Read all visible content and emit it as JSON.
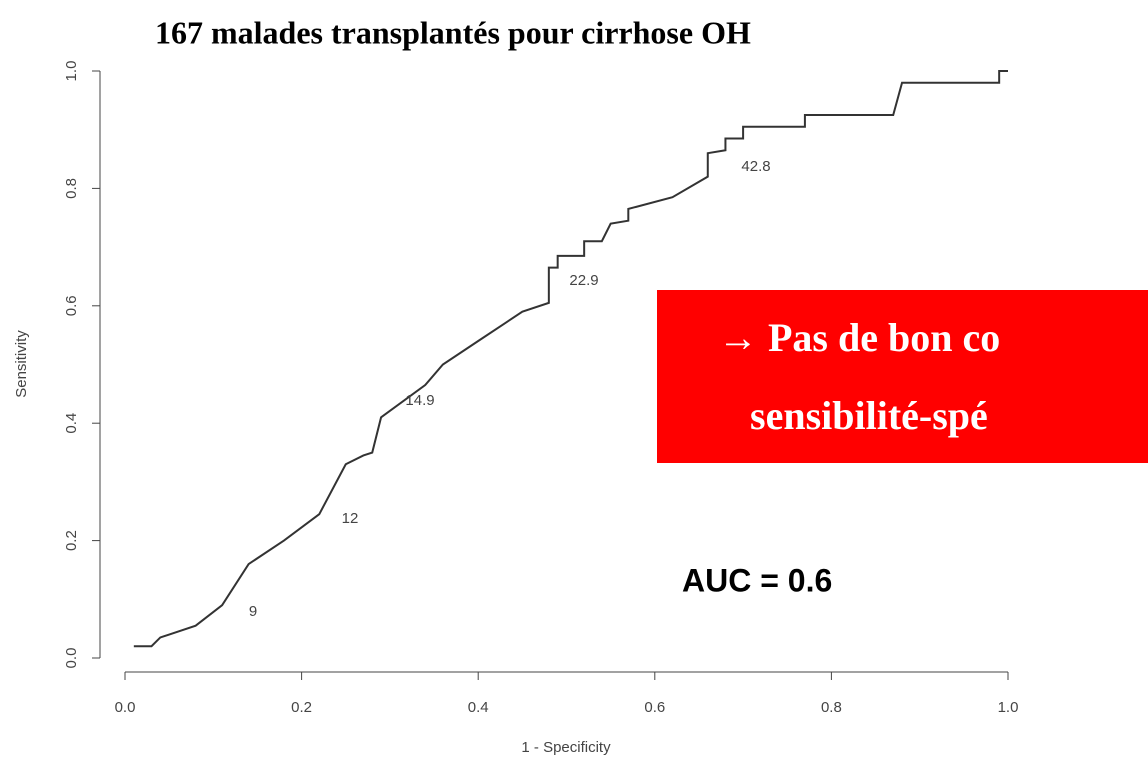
{
  "chart_data": {
    "type": "line",
    "title": "167 malades transplantés pour cirrhose OH",
    "x_label": "1 - Specificity",
    "y_label": "Sensitivity",
    "x": [
      0.01,
      0.03,
      0.04,
      0.05,
      0.08,
      0.11,
      0.14,
      0.18,
      0.22,
      0.25,
      0.27,
      0.28,
      0.29,
      0.34,
      0.36,
      0.4,
      0.43,
      0.45,
      0.48,
      0.48,
      0.49,
      0.49,
      0.52,
      0.52,
      0.54,
      0.55,
      0.57,
      0.57,
      0.62,
      0.66,
      0.66,
      0.68,
      0.68,
      0.7,
      0.7,
      0.77,
      0.77,
      0.87,
      0.88,
      0.99,
      0.99,
      1.0
    ],
    "series": [
      {
        "color": "#333333",
        "values": [
          0.02,
          0.02,
          0.035,
          0.04,
          0.055,
          0.09,
          0.16,
          0.2,
          0.245,
          0.33,
          0.345,
          0.35,
          0.41,
          0.465,
          0.5,
          0.54,
          0.57,
          0.59,
          0.605,
          0.665,
          0.665,
          0.685,
          0.685,
          0.71,
          0.71,
          0.74,
          0.745,
          0.765,
          0.785,
          0.82,
          0.86,
          0.865,
          0.885,
          0.885,
          0.905,
          0.905,
          0.925,
          0.925,
          0.98,
          0.98,
          1.0,
          1.0
        ]
      }
    ],
    "xlim": [
      0,
      1
    ],
    "ylim": [
      0,
      1
    ],
    "xticks": [
      {
        "value": 0,
        "label": "0.0"
      },
      {
        "value": 0.2,
        "label": "0.2"
      },
      {
        "value": 0.4,
        "label": "0.4"
      },
      {
        "value": 0.6,
        "label": "0.6"
      },
      {
        "value": 0.8,
        "label": "0.8"
      },
      {
        "value": 1,
        "label": "1.0"
      }
    ],
    "yticks": [
      {
        "value": 0,
        "label": "0.0"
      },
      {
        "value": 0.2,
        "label": "0.2"
      },
      {
        "value": 0.4,
        "label": "0.4"
      },
      {
        "value": 0.6,
        "label": "0.6"
      },
      {
        "value": 0.8,
        "label": "0.8"
      },
      {
        "value": 1,
        "label": "1.0"
      }
    ],
    "annotations": [
      "9",
      "12",
      "14.9",
      "22.9",
      "42.8"
    ],
    "callout": [
      "→ Pas de bon co",
      "sensibilité-spé"
    ],
    "callout_color": "#ff0000",
    "auc": "AUC = 0.6"
  }
}
